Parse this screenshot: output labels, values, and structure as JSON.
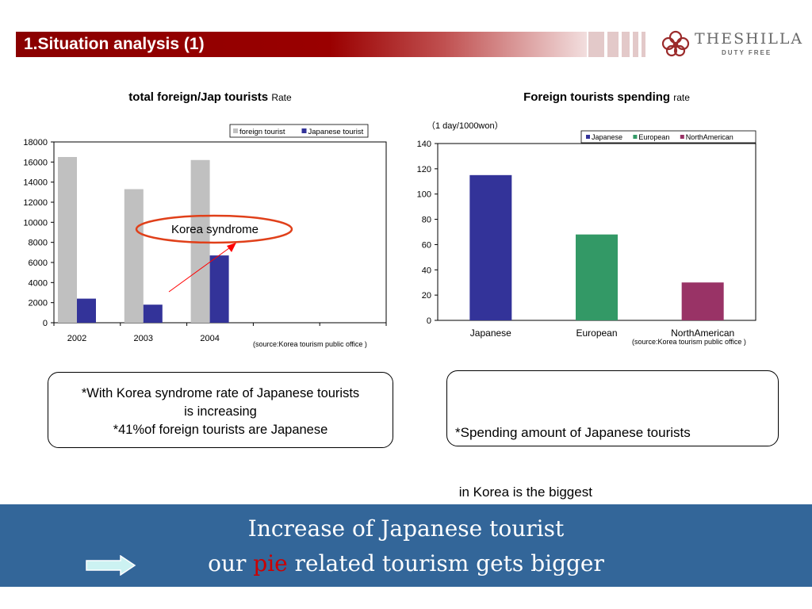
{
  "header": {
    "title": "1.Situation analysis (1)",
    "logo_name": "THESHILLA",
    "logo_sub": "DUTY FREE"
  },
  "chart_left_title": {
    "main": "total foreign/Jap tourists",
    "suffix": "Rate"
  },
  "chart_right_title": {
    "main": "Foreign tourists spending",
    "suffix": "rate"
  },
  "annotation_korea": "Korea syndrome",
  "unit_label_right": "（1 day/1000won）",
  "source_left": "(source:Korea tourism public office )",
  "source_right": "(source:Korea tourism public office )",
  "chart_data": [
    {
      "type": "bar",
      "categories": [
        "2002",
        "2003",
        "2004",
        "",
        ""
      ],
      "series": [
        {
          "name": "foreign tourist",
          "values": [
            16500,
            13300,
            16200,
            null,
            null
          ],
          "color": "#c0c0c0"
        },
        {
          "name": "Japanese tourist",
          "values": [
            2400,
            1800,
            6700,
            null,
            null
          ],
          "color": "#333399"
        }
      ],
      "ylim": [
        0,
        18000
      ],
      "yticks": [
        0,
        2000,
        4000,
        6000,
        8000,
        10000,
        12000,
        14000,
        16000,
        18000
      ],
      "legend": "top-right",
      "grid": false
    },
    {
      "type": "bar",
      "categories": [
        "Japanese",
        "European",
        "NorthAmerican"
      ],
      "series": [
        {
          "name": "Japanese",
          "color": "#333399"
        },
        {
          "name": "European",
          "color": "#339966"
        },
        {
          "name": "NorthAmerican",
          "color": "#993366"
        }
      ],
      "values": [
        115,
        68,
        30
      ],
      "ylim": [
        0,
        140
      ],
      "yticks": [
        0,
        20,
        40,
        60,
        80,
        100,
        120,
        140
      ],
      "legend": "top-right",
      "grid": false
    }
  ],
  "notes": {
    "left": [
      "*With Korea syndrome rate of Japanese tourists",
      "is increasing",
      "*41%of foreign tourists are Japanese"
    ],
    "right": [
      "*Spending amount of Japanese tourists",
      " in Korea is the biggest"
    ]
  },
  "bottom": {
    "line1": "Increase of  Japanese tourist",
    "line2_prefix": "our ",
    "line2_highlight": "pie",
    "line2_suffix": " related tourism gets bigger"
  },
  "colors": {
    "header_red": "#8a0000",
    "bottom_band": "#336699",
    "highlight_red": "#cc0000",
    "arrow_fill": "#ccf2f2"
  }
}
